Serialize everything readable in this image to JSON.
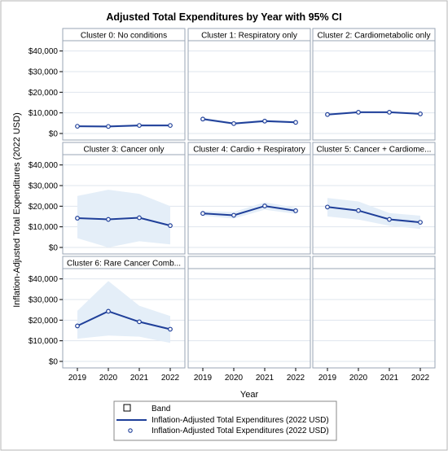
{
  "colors": {
    "line": "#1f3f99",
    "band": "#e4eef8",
    "header_bg": "#ffffff",
    "border": "#9aa6b4",
    "gridline": "#dfe5ee",
    "frame": "#000000"
  },
  "chart_data": {
    "type": "line",
    "title": "Adjusted Total Expenditures by Year with 95% CI",
    "xlabel": "Year",
    "ylabel": "Inflation-Adjusted Total Expenditures (2022 USD)",
    "x": [
      "2019",
      "2020",
      "2021",
      "2022"
    ],
    "ylim": [
      0,
      45000
    ],
    "yticks": [
      0,
      10000,
      20000,
      30000,
      40000
    ],
    "ytick_labels": [
      "$0",
      "$10,000",
      "$20,000",
      "$30,000",
      "$40,000"
    ],
    "grid": true,
    "legend": {
      "placement": "bottom",
      "entries": [
        {
          "symbol": "band",
          "label": "Band"
        },
        {
          "symbol": "line",
          "label": "Inflation-Adjusted Total Expenditures (2022 USD)"
        },
        {
          "symbol": "marker",
          "label": "Inflation-Adjusted Total Expenditures (2022 USD)"
        }
      ]
    },
    "panels": [
      {
        "title": "Cluster 0: No conditions",
        "values": [
          3500,
          3400,
          3900,
          3900
        ],
        "lower": [
          3000,
          2900,
          3300,
          3300
        ],
        "upper": [
          4000,
          3900,
          4500,
          4500
        ]
      },
      {
        "title": "Cluster 1: Respiratory only",
        "values": [
          7000,
          4800,
          6000,
          5400
        ],
        "lower": [
          6300,
          4200,
          5300,
          4800
        ],
        "upper": [
          7700,
          5400,
          6700,
          6000
        ]
      },
      {
        "title": "Cluster 2: Cardiometabolic only",
        "values": [
          9200,
          10300,
          10300,
          9500
        ],
        "lower": [
          8700,
          9800,
          9800,
          9000
        ],
        "upper": [
          9700,
          10800,
          10800,
          10000
        ]
      },
      {
        "title": "Cluster 3: Cancer only",
        "values": [
          14200,
          13600,
          14400,
          10600
        ],
        "lower": [
          4500,
          0,
          3000,
          1500
        ],
        "upper": [
          25000,
          28000,
          26000,
          20000
        ]
      },
      {
        "title": "Cluster 4: Cardio + Respiratory",
        "values": [
          16500,
          15600,
          20100,
          17800
        ],
        "lower": [
          15300,
          14000,
          18300,
          16300
        ],
        "upper": [
          17700,
          17200,
          21900,
          19300
        ]
      },
      {
        "title": "Cluster 5: Cancer + Cardiome...",
        "values": [
          19600,
          17900,
          13600,
          12200
        ],
        "lower": [
          15000,
          13500,
          10500,
          9000
        ],
        "upper": [
          24000,
          22300,
          16700,
          15400
        ]
      },
      {
        "title": "Cluster 6: Rare Cancer Comb...",
        "values": [
          17200,
          24300,
          19200,
          15600
        ],
        "lower": [
          11000,
          12500,
          12000,
          9000
        ],
        "upper": [
          24500,
          39000,
          27000,
          22000
        ]
      },
      {
        "title": "",
        "empty": true
      },
      {
        "title": "",
        "empty": true
      }
    ]
  }
}
